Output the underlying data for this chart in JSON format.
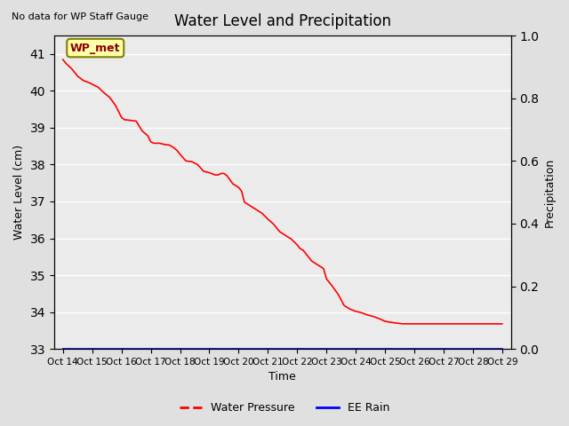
{
  "title": "Water Level and Precipitation",
  "top_left_text": "No data for WP Staff Gauge",
  "xlabel": "Time",
  "ylabel_left": "Water Level (cm)",
  "ylabel_right": "Precipitation",
  "legend_labels": [
    "Water Pressure",
    "EE Rain"
  ],
  "legend_colors": [
    "red",
    "blue"
  ],
  "wp_met_label": "WP_met",
  "ylim_left": [
    33.0,
    41.5
  ],
  "ylim_right": [
    0.0,
    1.0
  ],
  "yticks_left": [
    33.0,
    34.0,
    35.0,
    36.0,
    37.0,
    38.0,
    39.0,
    40.0,
    41.0
  ],
  "yticks_right": [
    0.0,
    0.2,
    0.4,
    0.6,
    0.8,
    1.0
  ],
  "xtick_labels": [
    "Oct 14",
    "Oct 15",
    "Oct 16",
    "Oct 17",
    "Oct 18",
    "Oct 19",
    "Oct 20",
    "Oct 21",
    "Oct 22",
    "Oct 23",
    "Oct 24",
    "Oct 25",
    "Oct 26",
    "Oct 27",
    "Oct 28",
    "Oct 29"
  ],
  "background_color": "#e0e0e0",
  "plot_bg_color": "#ebebeb",
  "line_color": "red",
  "rain_color": "blue",
  "water_level_data_x": [
    0.0,
    0.1,
    0.3,
    0.5,
    0.7,
    0.9,
    1.0,
    1.2,
    1.4,
    1.6,
    1.8,
    2.0,
    2.1,
    2.3,
    2.5,
    2.7,
    2.9,
    3.0,
    3.1,
    3.3,
    3.5,
    3.6,
    3.7,
    3.8,
    3.9,
    4.0,
    4.2,
    4.4,
    4.5,
    4.6,
    4.8,
    5.0,
    5.2,
    5.3,
    5.4,
    5.5,
    5.6,
    5.8,
    6.0,
    6.1,
    6.2,
    6.4,
    6.6,
    6.8,
    7.0,
    7.2,
    7.4,
    7.6,
    7.8,
    8.0,
    8.1,
    8.2,
    8.3,
    8.5,
    8.7,
    8.9,
    9.0,
    9.2,
    9.4,
    9.6,
    9.8,
    10.0,
    10.2,
    10.4,
    10.6,
    10.8,
    11.0,
    11.2,
    11.4,
    11.6,
    11.8,
    12.0,
    12.2,
    12.4,
    12.6,
    12.8,
    13.0,
    13.2,
    13.4,
    13.5,
    13.6,
    13.8,
    14.0,
    14.2,
    14.4,
    14.6,
    14.8,
    15.0
  ],
  "water_level_data_y": [
    40.85,
    40.75,
    40.6,
    40.4,
    40.28,
    40.22,
    40.18,
    40.1,
    39.95,
    39.82,
    39.6,
    39.28,
    39.22,
    39.2,
    39.18,
    38.92,
    38.78,
    38.62,
    38.58,
    38.58,
    38.54,
    38.54,
    38.5,
    38.45,
    38.38,
    38.28,
    38.1,
    38.08,
    38.04,
    38.0,
    37.82,
    37.78,
    37.72,
    37.72,
    37.76,
    37.76,
    37.7,
    37.48,
    37.38,
    37.28,
    36.98,
    36.88,
    36.78,
    36.68,
    36.52,
    36.38,
    36.18,
    36.08,
    35.98,
    35.82,
    35.72,
    35.68,
    35.58,
    35.38,
    35.28,
    35.18,
    34.9,
    34.7,
    34.48,
    34.18,
    34.08,
    34.02,
    33.98,
    33.92,
    33.88,
    33.82,
    33.75,
    33.72,
    33.7,
    33.68,
    33.68,
    33.68,
    33.68,
    33.68,
    33.68,
    33.68,
    33.68,
    33.68,
    33.68,
    33.68,
    33.68,
    33.68,
    33.68,
    33.68,
    33.68,
    33.68,
    33.68,
    33.68
  ],
  "figsize": [
    6.4,
    4.8
  ],
  "dpi": 100
}
